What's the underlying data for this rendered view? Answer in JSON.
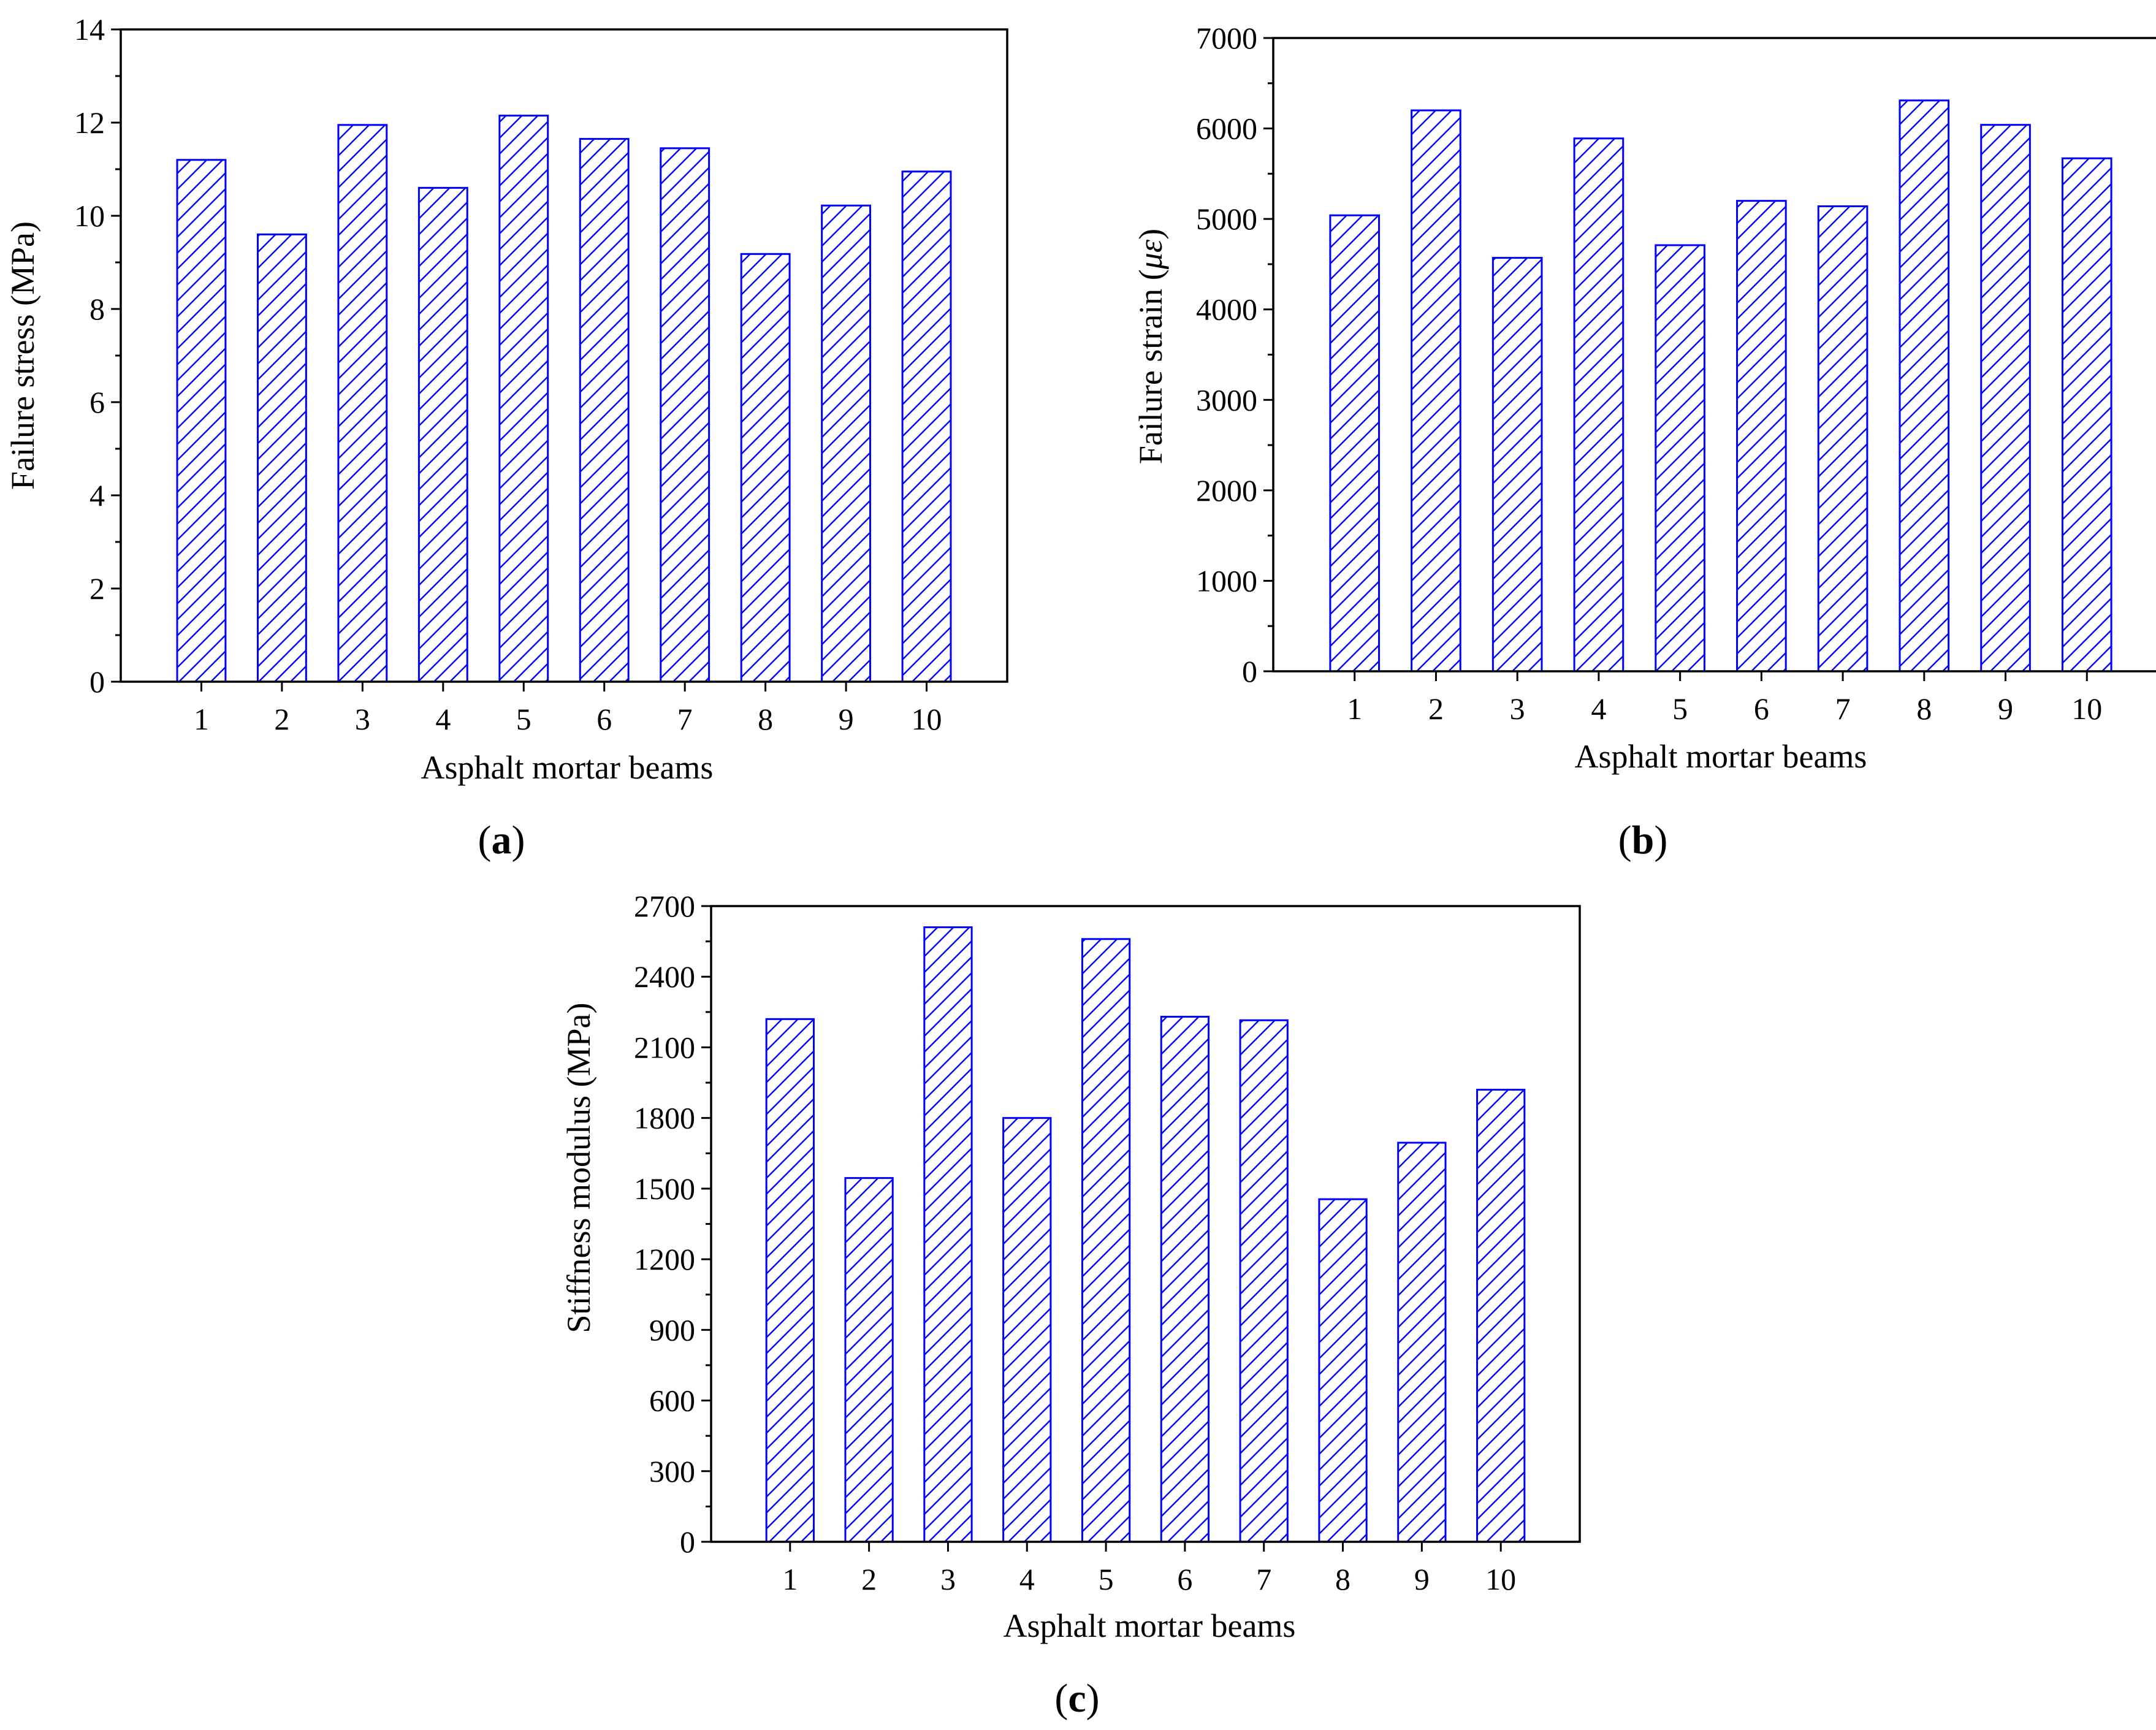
{
  "colors": {
    "bar_stroke": "#0000ff",
    "hatch": "#0000ff",
    "axis": "#000000",
    "background": "#ffffff"
  },
  "chart_data": [
    {
      "id": "a",
      "type": "bar",
      "panel_label": "a",
      "title": "",
      "xlabel": "Asphalt mortar beams",
      "ylabel": "Failure stress (MPa)",
      "categories": [
        "1",
        "2",
        "3",
        "4",
        "5",
        "6",
        "7",
        "8",
        "9",
        "10"
      ],
      "values": [
        11.2,
        9.6,
        11.95,
        10.6,
        12.15,
        11.65,
        11.45,
        9.18,
        10.22,
        10.95
      ],
      "ylim": [
        0,
        14
      ],
      "yticks": [
        0,
        2,
        4,
        6,
        8,
        10,
        12,
        14
      ],
      "ytick_labels": [
        "0",
        "2",
        "4",
        "6",
        "8",
        "10",
        "12",
        "14"
      ],
      "minor_yticks": [
        1,
        3,
        5,
        7,
        9,
        11,
        13
      ],
      "grid": false,
      "legend": "none",
      "bar_fill": "diagonal hatch"
    },
    {
      "id": "b",
      "type": "bar",
      "panel_label": "b",
      "title": "",
      "xlabel": "Asphalt mortar beams",
      "ylabel_prefix": "Failure strain (",
      "ylabel_symbol": "με",
      "ylabel_suffix": ")",
      "categories": [
        "1",
        "2",
        "3",
        "4",
        "5",
        "6",
        "7",
        "8",
        "9",
        "10"
      ],
      "values": [
        5040,
        6200,
        4570,
        5890,
        4710,
        5200,
        5140,
        6310,
        6040,
        5670
      ],
      "ylim": [
        0,
        7000
      ],
      "yticks": [
        0,
        1000,
        2000,
        3000,
        4000,
        5000,
        6000,
        7000
      ],
      "ytick_labels": [
        "0",
        "1000",
        "2000",
        "3000",
        "4000",
        "5000",
        "6000",
        "7000"
      ],
      "minor_yticks": [
        500,
        1500,
        2500,
        3500,
        4500,
        5500,
        6500
      ],
      "grid": false,
      "legend": "none",
      "bar_fill": "diagonal hatch"
    },
    {
      "id": "c",
      "type": "bar",
      "panel_label": "c",
      "title": "",
      "xlabel": "Asphalt mortar beams",
      "ylabel": "Stiffness modulus (MPa)",
      "categories": [
        "1",
        "2",
        "3",
        "4",
        "5",
        "6",
        "7",
        "8",
        "9",
        "10"
      ],
      "values": [
        2220,
        1545,
        2610,
        1800,
        2560,
        2230,
        2215,
        1455,
        1695,
        1920
      ],
      "ylim": [
        0,
        2700
      ],
      "yticks": [
        0,
        300,
        600,
        900,
        1200,
        1500,
        1800,
        2100,
        2400,
        2700
      ],
      "ytick_labels": [
        "0",
        "300",
        "600",
        "900",
        "1200",
        "1500",
        "1800",
        "2100",
        "2400",
        "2700"
      ],
      "minor_yticks": [
        150,
        450,
        750,
        1050,
        1350,
        1650,
        1950,
        2250,
        2550
      ],
      "grid": false,
      "legend": "none",
      "bar_fill": "diagonal hatch"
    }
  ]
}
